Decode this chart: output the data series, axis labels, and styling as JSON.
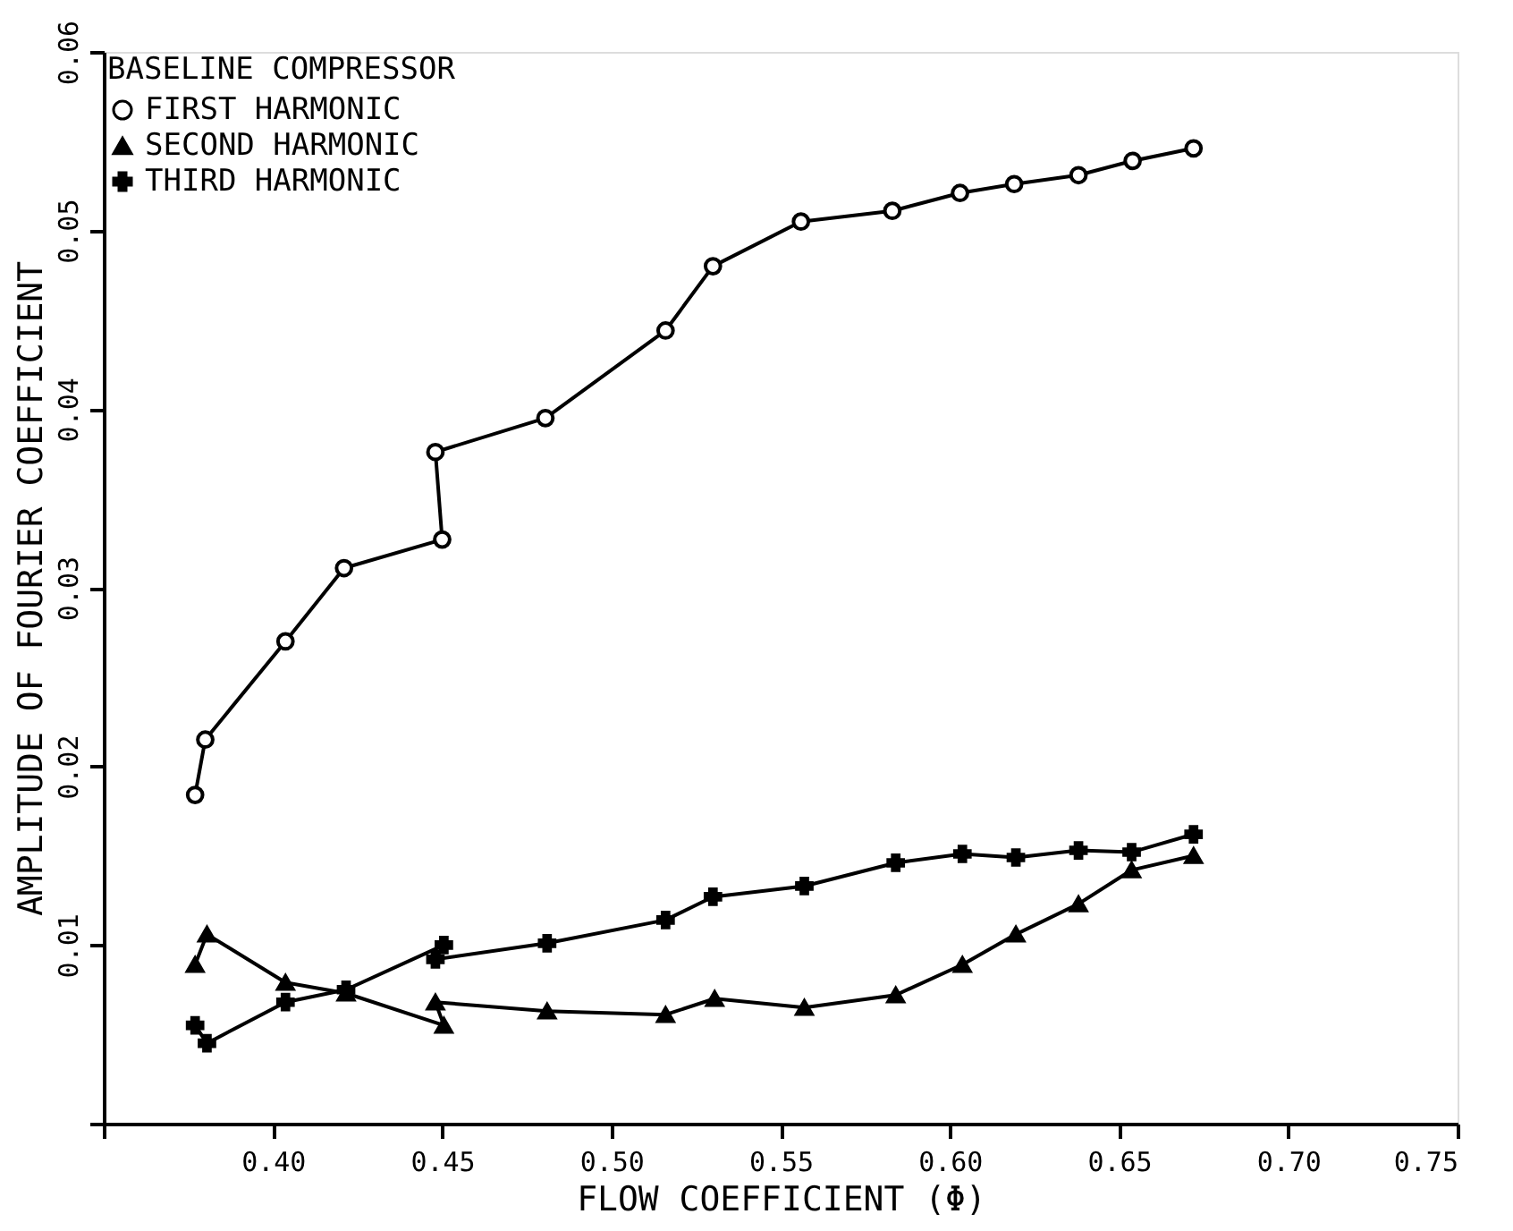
{
  "chart_data": {
    "type": "line",
    "xlabel": "FLOW COEFFICIENT (Φ)",
    "ylabel": "AMPLITUDE OF FOURIER COEFFICIENT",
    "legend_title": "BASELINE COMPRESSOR",
    "legend": "top left",
    "xlim": [
      0.35,
      0.75
    ],
    "xticks": [
      {
        "value": 0.35,
        "label": null
      },
      {
        "value": 0.4,
        "label": "0.40"
      },
      {
        "value": 0.45,
        "label": "0.45"
      },
      {
        "value": 0.5,
        "label": "0.50"
      },
      {
        "value": 0.55,
        "label": "0.55"
      },
      {
        "value": 0.6,
        "label": "0.60"
      },
      {
        "value": 0.65,
        "label": "0.65"
      },
      {
        "value": 0.7,
        "label": "0.70"
      },
      {
        "value": 0.75,
        "label": "0.75"
      }
    ],
    "ylim": [
      0,
      0.06
    ],
    "yticks": [
      {
        "value": 0,
        "label": null
      },
      0.01,
      0.02,
      0.03,
      0.04,
      0.05,
      0.06
    ],
    "grid": false,
    "line_style": "solid",
    "series": [
      {
        "name": "FIRST HARMONIC",
        "color": "#000000",
        "marker": "circle",
        "x": [
          0.377,
          0.38,
          0.4037,
          0.421,
          0.45,
          0.448,
          0.4805,
          0.516,
          0.53,
          0.556,
          0.583,
          0.603,
          0.619,
          0.638,
          0.654,
          0.672
        ],
        "values": [
          0.0184,
          0.0215,
          0.027,
          0.0311,
          0.0327,
          0.0376,
          0.0395,
          0.0444,
          0.048,
          0.0505,
          0.0511,
          0.0521,
          0.0526,
          0.0531,
          0.0539,
          0.0546
        ]
      },
      {
        "name": "SECOND HARMONIC",
        "color": "#000000",
        "marker": "triangle",
        "x": [
          0.377,
          0.3805,
          0.4037,
          0.4216,
          0.4505,
          0.448,
          0.481,
          0.516,
          0.5305,
          0.557,
          0.584,
          0.6037,
          0.6195,
          0.638,
          0.6537,
          0.672
        ],
        "values": [
          0.0089,
          0.0106,
          0.0079,
          0.0073,
          0.0055,
          0.0068,
          0.0063,
          0.0061,
          0.007,
          0.0065,
          0.0072,
          0.0089,
          0.0106,
          0.0123,
          0.0142,
          0.015
        ]
      },
      {
        "name": "THIRD HARMONIC",
        "color": "#000000",
        "marker": "cross",
        "x": [
          0.377,
          0.3805,
          0.4037,
          0.4216,
          0.4505,
          0.448,
          0.481,
          0.516,
          0.53,
          0.557,
          0.584,
          0.6037,
          0.6195,
          0.638,
          0.6537,
          0.672
        ],
        "values": [
          0.0055,
          0.0045,
          0.0068,
          0.0075,
          0.01,
          0.0092,
          0.0101,
          0.0114,
          0.0127,
          0.0133,
          0.0146,
          0.0151,
          0.0149,
          0.0153,
          0.0152,
          0.0162
        ]
      }
    ]
  }
}
